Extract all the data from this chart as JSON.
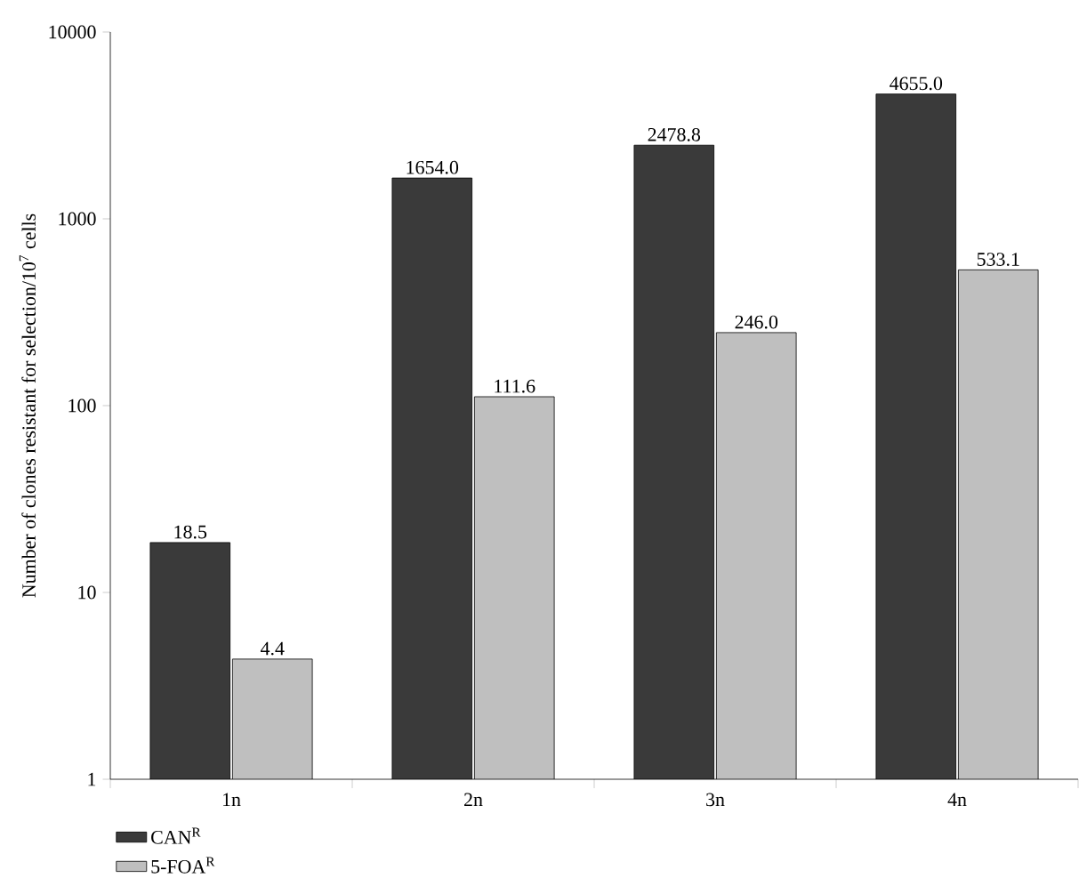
{
  "chart_data": {
    "type": "bar",
    "ylabel": "Number of clones resistant for selection/10$^{7}$ cells",
    "categories": [
      "1n",
      "2n",
      "3n",
      "4n"
    ],
    "series": [
      {
        "name": "CAN$^{R}$",
        "color": "#3a3a3a",
        "values": [
          18.5,
          1654.0,
          2478.8,
          4655.0
        ],
        "value_labels": [
          "18.5",
          "1654.0",
          "2478.8",
          "4655.0"
        ]
      },
      {
        "name": "5-FOA$^{R}$",
        "color": "#bfbfbf",
        "values": [
          4.4,
          111.6,
          246.0,
          533.1
        ],
        "value_labels": [
          "4.4",
          "111.6",
          "246.0",
          "533.1"
        ]
      }
    ],
    "log": "y",
    "ylim": [
      1,
      10000
    ],
    "yticks": [
      1,
      10,
      100,
      1000,
      10000
    ],
    "grid": false,
    "legend": "bottom left"
  }
}
